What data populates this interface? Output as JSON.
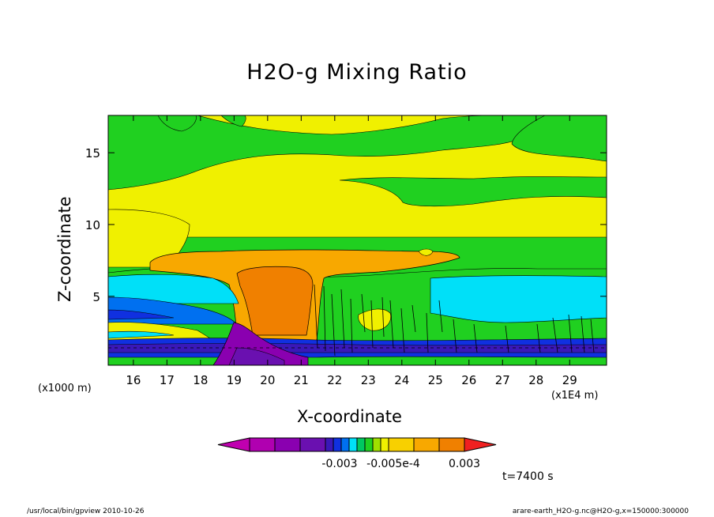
{
  "chart_data": {
    "type": "heatmap",
    "title": "H2O-g Mixing Ratio",
    "xlabel": "X-coordinate",
    "ylabel": "Z-coordinate",
    "x_unit_left": "(x1000 m)",
    "x_unit_right": "(x1E4 m)",
    "xlim": [
      15.25,
      30.1
    ],
    "ylim": [
      0.2,
      17.6
    ],
    "x_ticks": [
      16,
      17,
      18,
      19,
      20,
      21,
      22,
      23,
      24,
      25,
      26,
      27,
      28,
      29
    ],
    "y_ticks": [
      5,
      10,
      15
    ],
    "colorbar": {
      "colors": [
        "#c000b0",
        "#b000b0",
        "#8a00b0",
        "#6a10b0",
        "#3a18b8",
        "#1030e0",
        "#0070f0",
        "#00e0f8",
        "#00c860",
        "#20d020",
        "#a0e000",
        "#f0f000",
        "#f8d000",
        "#f8a800",
        "#f08000",
        "#f02020"
      ],
      "labels": [
        "-0.003",
        "-0.005e-4",
        "0.003"
      ]
    },
    "annotation": "t=7400 s",
    "footer_left": "/usr/local/bin/gpview  2010-10-26",
    "footer_right": "arare-earth_H2O-g.nc@H2O-g,x=150000:300000"
  }
}
